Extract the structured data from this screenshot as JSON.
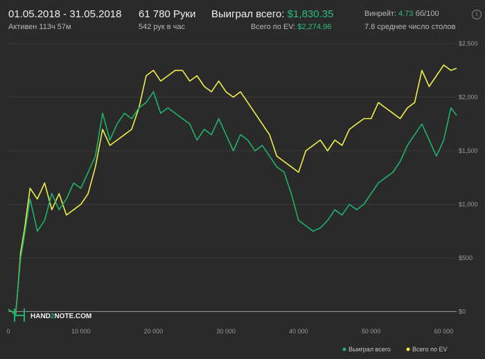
{
  "header": {
    "date_range": "01.05.2018 - 31.05.2018",
    "active_time": "Активен 113ч 57м",
    "hands": "61 780 Руки",
    "hands_per_hour": "542 рук в час",
    "won_label": "Выиграл всего:",
    "won_value": "$1,830.35",
    "ev_label": "Всего по EV:",
    "ev_value": "$2,274.96",
    "winrate_label": "Винрейт:",
    "winrate_value": "4.73",
    "winrate_unit": "бб/100",
    "avg_tables": "7.8 среднее число столов",
    "info_icon": "i"
  },
  "logo": {
    "text_a": "HAND",
    "text_b": "2",
    "text_c": "NOTE.COM"
  },
  "colors": {
    "won": "#1fb36b",
    "ev": "#eef04a",
    "background": "#2a2a2a"
  },
  "chart_data": {
    "type": "line",
    "title": "",
    "xlabel": "",
    "ylabel": "",
    "xlim": [
      0,
      61780
    ],
    "ylim": [
      -120,
      2500
    ],
    "x_ticks": [
      0,
      10000,
      20000,
      30000,
      40000,
      50000,
      60000
    ],
    "x_tick_labels": [
      "0",
      "10 000",
      "20 000",
      "30 000",
      "40 000",
      "50 000",
      "60 000"
    ],
    "y_ticks": [
      0,
      500,
      1000,
      1500,
      2000,
      2500
    ],
    "y_tick_labels": [
      "$0",
      "$500",
      "$1,000",
      "$1,500",
      "$2,000",
      "$2,500"
    ],
    "grid": true,
    "legend_position": "bottom-right",
    "series": [
      {
        "name": "Выиграл всего",
        "color": "#1fb36b",
        "x": [
          0,
          500,
          1000,
          1300,
          1700,
          2200,
          3000,
          4000,
          5000,
          6000,
          7000,
          8000,
          9000,
          10000,
          11000,
          12000,
          13000,
          14000,
          15000,
          16000,
          17000,
          18000,
          19000,
          20000,
          21000,
          22000,
          23000,
          24000,
          25000,
          26000,
          27000,
          28000,
          29000,
          30000,
          31000,
          32000,
          33000,
          34000,
          35000,
          36000,
          37000,
          38000,
          39000,
          40000,
          41000,
          42000,
          43000,
          44000,
          45000,
          46000,
          47000,
          48000,
          49000,
          50000,
          51000,
          52000,
          53000,
          54000,
          55000,
          56000,
          57000,
          58000,
          59000,
          60000,
          61000,
          61780
        ],
        "y": [
          20,
          0,
          -40,
          200,
          500,
          700,
          1050,
          750,
          850,
          1100,
          950,
          1050,
          1200,
          1150,
          1300,
          1450,
          1850,
          1600,
          1750,
          1850,
          1800,
          1900,
          1950,
          2050,
          1850,
          1900,
          1850,
          1800,
          1750,
          1600,
          1700,
          1650,
          1800,
          1650,
          1500,
          1650,
          1600,
          1500,
          1550,
          1450,
          1350,
          1300,
          1100,
          850,
          800,
          750,
          780,
          850,
          950,
          900,
          1000,
          950,
          1000,
          1100,
          1200,
          1250,
          1300,
          1400,
          1550,
          1650,
          1750,
          1600,
          1450,
          1600,
          1900,
          1830
        ]
      },
      {
        "name": "Всего по EV",
        "color": "#eef04a",
        "x": [
          0,
          500,
          1000,
          1300,
          1700,
          2200,
          3000,
          4000,
          5000,
          6000,
          7000,
          8000,
          9000,
          10000,
          11000,
          12000,
          13000,
          14000,
          15000,
          16000,
          17000,
          18000,
          19000,
          20000,
          21000,
          22000,
          23000,
          24000,
          25000,
          26000,
          27000,
          28000,
          29000,
          30000,
          31000,
          32000,
          33000,
          34000,
          35000,
          36000,
          37000,
          38000,
          39000,
          40000,
          41000,
          42000,
          43000,
          44000,
          45000,
          46000,
          47000,
          48000,
          49000,
          50000,
          51000,
          52000,
          53000,
          54000,
          55000,
          56000,
          57000,
          58000,
          59000,
          60000,
          61000,
          61780
        ],
        "y": [
          20,
          0,
          -40,
          200,
          550,
          750,
          1150,
          1050,
          1200,
          950,
          1100,
          900,
          950,
          1000,
          1100,
          1350,
          1700,
          1550,
          1600,
          1650,
          1700,
          1900,
          2200,
          2250,
          2150,
          2200,
          2250,
          2250,
          2150,
          2200,
          2100,
          2050,
          2150,
          2050,
          2000,
          2050,
          1950,
          1850,
          1750,
          1650,
          1450,
          1400,
          1350,
          1300,
          1500,
          1550,
          1600,
          1500,
          1600,
          1550,
          1700,
          1750,
          1800,
          1800,
          1950,
          1900,
          1850,
          1800,
          1900,
          1950,
          2250,
          2100,
          2200,
          2300,
          2250,
          2270
        ]
      }
    ]
  }
}
